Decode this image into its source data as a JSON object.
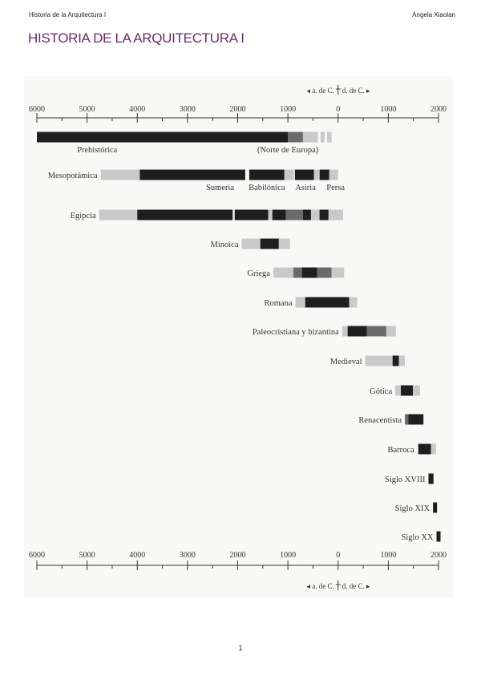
{
  "header": {
    "left": "Historia de la Arquitectura I",
    "right": "Ángela Xiaolan"
  },
  "title": "HISTORIA DE LA ARQUITECTURA I",
  "page_number": "1",
  "chart_data": {
    "type": "timeline",
    "era_marker": {
      "before": "◂ a. de C.",
      "after": "d. de C. ▸"
    },
    "axis": {
      "range": [
        -6000,
        2000
      ],
      "ticks": [
        -6000,
        -5000,
        -4000,
        -3000,
        -2000,
        -1000,
        0,
        1000,
        2000
      ],
      "tick_labels": [
        "6000",
        "5000",
        "4000",
        "3000",
        "2000",
        "1000",
        "0",
        "1000",
        "2000"
      ],
      "minor_step": 500
    },
    "colors": {
      "dark": "#1e1e1e",
      "mid": "#6a6a6a",
      "light": "#c9c9c9"
    },
    "rows": [
      {
        "label": "Prehistórica",
        "label_pos": "below",
        "segments": [
          [
            -6000,
            -1000,
            "dark"
          ],
          [
            -1000,
            -700,
            "mid"
          ],
          [
            -700,
            -400,
            "light"
          ],
          [
            -350,
            -270,
            "light"
          ],
          [
            -220,
            -130,
            "light"
          ]
        ],
        "sublabels": [
          {
            "text": "Prehistórica",
            "at": -4800
          },
          {
            "text": "(Norte de Europa)",
            "at": -1000
          }
        ]
      },
      {
        "label": "Mesopotámica",
        "segments": [
          [
            -4730,
            -3950,
            "light"
          ],
          [
            -3950,
            -1850,
            "dark"
          ],
          [
            -1770,
            -1070,
            "dark"
          ],
          [
            -1070,
            -880,
            "light"
          ],
          [
            -860,
            -480,
            "dark"
          ],
          [
            -480,
            -380,
            "light"
          ],
          [
            -370,
            -175,
            "dark"
          ],
          [
            -175,
            0,
            "light"
          ]
        ],
        "sublabels": [
          {
            "text": "Sumeria",
            "at": -2350
          },
          {
            "text": "Babilónica",
            "at": -1420
          },
          {
            "text": "Asiria",
            "at": -650
          },
          {
            "text": "Persa",
            "at": -50
          }
        ]
      },
      {
        "label": "Egipcia",
        "segments": [
          [
            -4760,
            -4000,
            "light"
          ],
          [
            -4000,
            -2100,
            "dark"
          ],
          [
            -2060,
            -1390,
            "dark"
          ],
          [
            -1390,
            -1310,
            "light"
          ],
          [
            -1310,
            -1040,
            "dark"
          ],
          [
            -1040,
            -700,
            "mid"
          ],
          [
            -700,
            -540,
            "dark"
          ],
          [
            -540,
            -370,
            "light"
          ],
          [
            -370,
            -190,
            "dark"
          ],
          [
            -190,
            100,
            "light"
          ]
        ]
      },
      {
        "label": "Minoica",
        "segments": [
          [
            -1920,
            -1550,
            "light"
          ],
          [
            -1550,
            -1180,
            "dark"
          ],
          [
            -1180,
            -960,
            "light"
          ]
        ]
      },
      {
        "label": "Griega",
        "segments": [
          [
            -1290,
            -890,
            "light"
          ],
          [
            -890,
            -720,
            "mid"
          ],
          [
            -720,
            -415,
            "dark"
          ],
          [
            -415,
            -130,
            "mid"
          ],
          [
            -130,
            120,
            "light"
          ]
        ]
      },
      {
        "label": "Romana",
        "segments": [
          [
            -850,
            -655,
            "light"
          ],
          [
            -655,
            220,
            "dark"
          ],
          [
            220,
            380,
            "light"
          ]
        ]
      },
      {
        "label": "Paleocristiana y bizantina",
        "segments": [
          [
            80,
            190,
            "light"
          ],
          [
            190,
            575,
            "dark"
          ],
          [
            575,
            960,
            "mid"
          ],
          [
            960,
            1150,
            "light"
          ]
        ]
      },
      {
        "label": "Medieval",
        "segments": [
          [
            540,
            1085,
            "light"
          ],
          [
            1085,
            1210,
            "dark"
          ],
          [
            1210,
            1330,
            "light"
          ]
        ]
      },
      {
        "label": "Gótica",
        "segments": [
          [
            1140,
            1250,
            "light"
          ],
          [
            1250,
            1490,
            "dark"
          ],
          [
            1490,
            1630,
            "light"
          ]
        ]
      },
      {
        "label": "Renacentista",
        "segments": [
          [
            1330,
            1400,
            "mid"
          ],
          [
            1400,
            1700,
            "dark"
          ]
        ]
      },
      {
        "label": "Barroca",
        "segments": [
          [
            1580,
            1600,
            "light"
          ],
          [
            1600,
            1850,
            "dark"
          ],
          [
            1850,
            1950,
            "light"
          ]
        ]
      },
      {
        "label": "Siglo XVIII",
        "segments": [
          [
            1800,
            1900,
            "dark"
          ]
        ]
      },
      {
        "label": "Siglo XIX",
        "segments": [
          [
            1890,
            1970,
            "dark"
          ]
        ]
      },
      {
        "label": "Siglo XX",
        "segments": [
          [
            1960,
            2040,
            "dark"
          ]
        ]
      }
    ]
  }
}
